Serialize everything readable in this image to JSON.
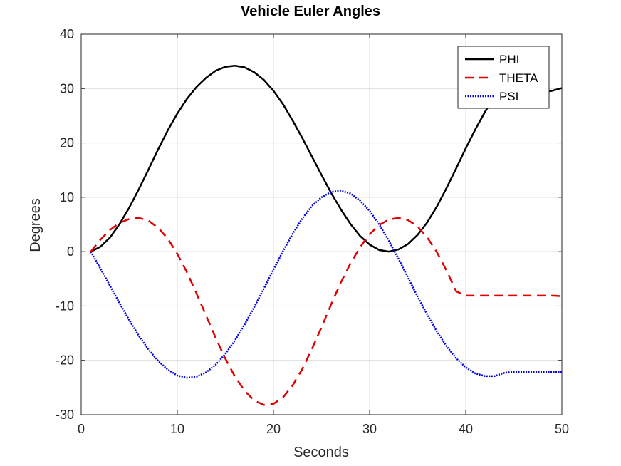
{
  "chart_data": {
    "type": "line",
    "title": "Vehicle Euler Angles",
    "xlabel": "Seconds",
    "ylabel": "Degrees",
    "xlim": [
      0,
      50
    ],
    "ylim": [
      -30,
      40
    ],
    "xticks": [
      0,
      10,
      20,
      30,
      40,
      50
    ],
    "yticks": [
      -30,
      -20,
      -10,
      0,
      10,
      20,
      30,
      40
    ],
    "xtick_labels": [
      "0",
      "10",
      "20",
      "30",
      "40",
      "50"
    ],
    "ytick_labels": [
      "-30",
      "-20",
      "-10",
      "0",
      "10",
      "20",
      "30",
      "40"
    ],
    "grid": true,
    "legend_position": "top-right",
    "x": [
      1,
      2,
      3,
      4,
      5,
      6,
      7,
      8,
      9,
      10,
      11,
      12,
      13,
      14,
      15,
      16,
      17,
      18,
      19,
      20,
      21,
      22,
      23,
      24,
      25,
      26,
      27,
      28,
      29,
      30,
      31,
      32,
      33,
      34,
      35,
      36,
      37,
      38,
      39,
      40,
      41,
      42,
      43,
      44,
      45,
      46,
      47,
      48,
      49,
      50
    ],
    "series": [
      {
        "name": "PHI",
        "color": "#000000",
        "dash": "solid",
        "values": [
          0.0,
          0.9,
          2.6,
          5.1,
          8.1,
          11.5,
          15.1,
          18.8,
          22.3,
          25.4,
          28.1,
          30.3,
          32.0,
          33.3,
          34.0,
          34.2,
          33.9,
          33.0,
          31.6,
          29.6,
          27.1,
          24.1,
          20.9,
          17.5,
          14.1,
          10.8,
          7.8,
          5.1,
          2.9,
          1.3,
          0.3,
          0.0,
          0.4,
          1.4,
          3.1,
          5.4,
          8.3,
          11.7,
          15.3,
          19.0,
          22.5,
          25.7,
          28.5,
          30.3,
          31.0,
          30.7,
          30.0,
          29.3,
          29.6,
          30.1
        ]
      },
      {
        "name": "THETA",
        "color": "#e00000",
        "dash": "dashed",
        "values": [
          0.0,
          2.2,
          4.0,
          5.3,
          6.0,
          6.2,
          5.7,
          4.4,
          2.4,
          -0.4,
          -3.8,
          -7.7,
          -11.8,
          -15.9,
          -19.7,
          -23.0,
          -25.6,
          -27.4,
          -28.2,
          -28.0,
          -26.8,
          -24.6,
          -21.6,
          -17.9,
          -13.9,
          -9.7,
          -5.7,
          -2.2,
          0.8,
          3.2,
          4.9,
          5.9,
          6.2,
          5.8,
          4.6,
          2.6,
          -0.1,
          -3.5,
          -7.3,
          -8.1,
          -8.1,
          -8.1,
          -8.1,
          -8.1,
          -8.1,
          -8.1,
          -8.1,
          -8.1,
          -8.1,
          -8.2
        ]
      },
      {
        "name": "PSI",
        "color": "#0000e0",
        "dash": "dotted",
        "values": [
          0.0,
          -3.1,
          -6.3,
          -9.5,
          -12.6,
          -15.5,
          -18.0,
          -20.1,
          -21.7,
          -22.8,
          -23.2,
          -23.0,
          -22.2,
          -20.8,
          -18.8,
          -16.3,
          -13.4,
          -10.2,
          -6.8,
          -3.3,
          0.1,
          3.3,
          6.1,
          8.4,
          10.0,
          11.0,
          11.2,
          10.7,
          9.4,
          7.5,
          5.0,
          2.0,
          -1.3,
          -4.8,
          -8.3,
          -11.6,
          -14.7,
          -17.4,
          -19.6,
          -21.3,
          -22.4,
          -22.9,
          -22.9,
          -22.3,
          -22.1,
          -22.1,
          -22.1,
          -22.1,
          -22.1,
          -22.1
        ]
      }
    ]
  }
}
